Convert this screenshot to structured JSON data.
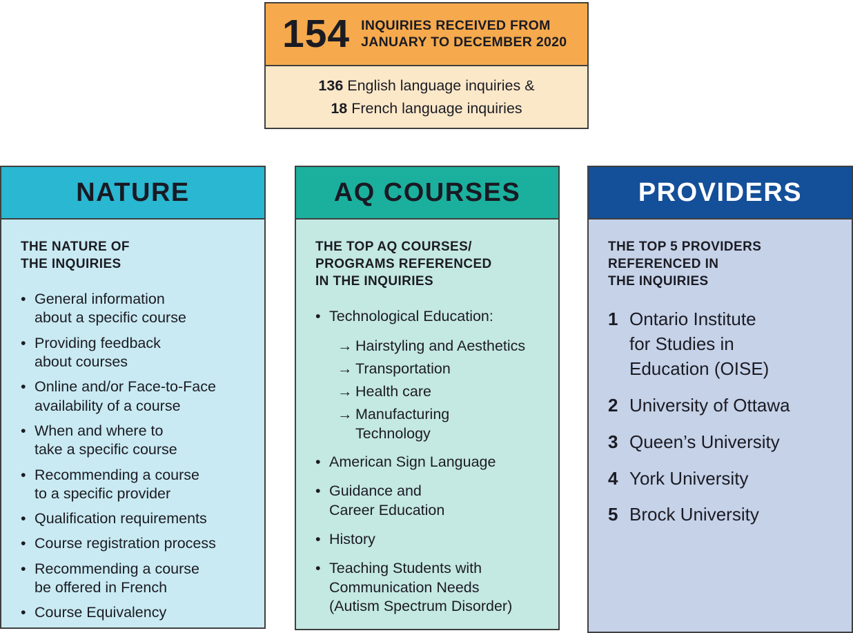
{
  "icons": {
    "bullet": "•",
    "arrow": "→"
  },
  "colors": {
    "summary_header_bg": "#f6aa4d",
    "summary_body_bg": "#fbe8c9",
    "nature_header_bg": "#29b7d1",
    "nature_body_bg": "#c9eaf2",
    "aq_header_bg": "#1bb09d",
    "aq_body_bg": "#c4e8e2",
    "providers_header_bg": "#144f99",
    "providers_body_bg": "#c5d2e8",
    "providers_title_color": "#ffffff",
    "text_color": "#1b1b23",
    "border_color": "#3f3f3f"
  },
  "summary": {
    "count": "154",
    "label": "INQUIRIES RECEIVED FROM\nJANUARY TO DECEMBER 2020",
    "english_count": "136",
    "english_text": " English language inquiries &",
    "french_count": "18",
    "french_text": " French language inquiries"
  },
  "columns": [
    {
      "title": "NATURE",
      "subheading": "THE NATURE OF\nTHE INQUIRIES",
      "items": [
        "General information\nabout a specific course",
        "Providing feedback\nabout courses",
        "Online and/or Face-to-Face\navailability of a course",
        "When and where to\ntake a specific course",
        "Recommending a course\nto a specific provider",
        "Qualification requirements",
        "Course registration process",
        "Recommending a course\nbe offered in French",
        "Course Equivalency"
      ]
    },
    {
      "title": "AQ COURSES",
      "subheading": "THE TOP AQ COURSES/\nPROGRAMS REFERENCED\nIN THE INQUIRIES",
      "items": [
        {
          "type": "bullet",
          "text": "Technological Education:"
        },
        {
          "type": "arrow",
          "text": "Hairstyling and Aesthetics"
        },
        {
          "type": "arrow",
          "text": "Transportation"
        },
        {
          "type": "arrow",
          "text": "Health care"
        },
        {
          "type": "arrow",
          "text": "Manufacturing\nTechnology"
        },
        {
          "type": "bullet",
          "text": "American Sign Language"
        },
        {
          "type": "bullet",
          "text": "Guidance and\nCareer Education"
        },
        {
          "type": "bullet",
          "text": "History"
        },
        {
          "type": "bullet",
          "text": "Teaching Students with\nCommunication Needs\n(Autism Spectrum Disorder)"
        }
      ]
    },
    {
      "title": "PROVIDERS",
      "subheading": "THE TOP 5 PROVIDERS\nREFERENCED IN\nTHE INQUIRIES",
      "items": [
        {
          "rank": "1",
          "text": "Ontario Institute\nfor Studies in\nEducation (OISE)"
        },
        {
          "rank": "2",
          "text": "University of Ottawa"
        },
        {
          "rank": "3",
          "text": "Queen’s University"
        },
        {
          "rank": "4",
          "text": "York University"
        },
        {
          "rank": "5",
          "text": "Brock University"
        }
      ]
    }
  ]
}
